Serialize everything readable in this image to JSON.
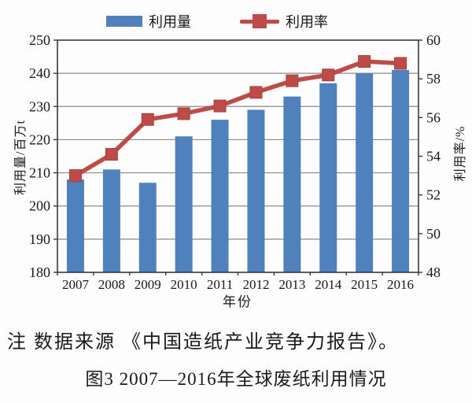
{
  "legend": {
    "bar_label": "利用量",
    "line_label": "利用率"
  },
  "figure_text": {
    "note": "注 数据来源 《中国造纸产业竞争力报告》。",
    "caption": "图3 2007—2016年全球废纸利用情况"
  },
  "colors": {
    "bar": "#4F81BD",
    "line": "#BE4B48",
    "marker_edge": "#A24440",
    "grid": "#8C8C8C",
    "axis": "#3A3A3A",
    "text": "#1A1A1A"
  },
  "chart_data": {
    "type": "bar+line",
    "categories": [
      "2007",
      "2008",
      "2009",
      "2010",
      "2011",
      "2012",
      "2013",
      "2014",
      "2015",
      "2016"
    ],
    "series": [
      {
        "name": "利用量",
        "type": "bar",
        "axis": "left",
        "unit": "百万t",
        "values": [
          208,
          211,
          207,
          221,
          226,
          229,
          233,
          237,
          240,
          241
        ]
      },
      {
        "name": "利用率",
        "type": "line",
        "axis": "right",
        "unit": "%",
        "marker": "square",
        "values": [
          53,
          54.1,
          55.9,
          56.2,
          56.6,
          57.3,
          57.9,
          58.2,
          58.9,
          58.8
        ]
      }
    ],
    "left_axis": {
      "title": "利用量/百万t",
      "min": 180,
      "max": 250,
      "step": 10,
      "ticks": [
        250,
        240,
        230,
        220,
        210,
        200,
        190,
        180
      ]
    },
    "right_axis": {
      "title": "利用率/%",
      "min": 48,
      "max": 60,
      "step": 2,
      "ticks": [
        60,
        58,
        56,
        54,
        52,
        50,
        48
      ]
    },
    "xlabel": "年份",
    "grid": true,
    "legend_position": "top"
  }
}
